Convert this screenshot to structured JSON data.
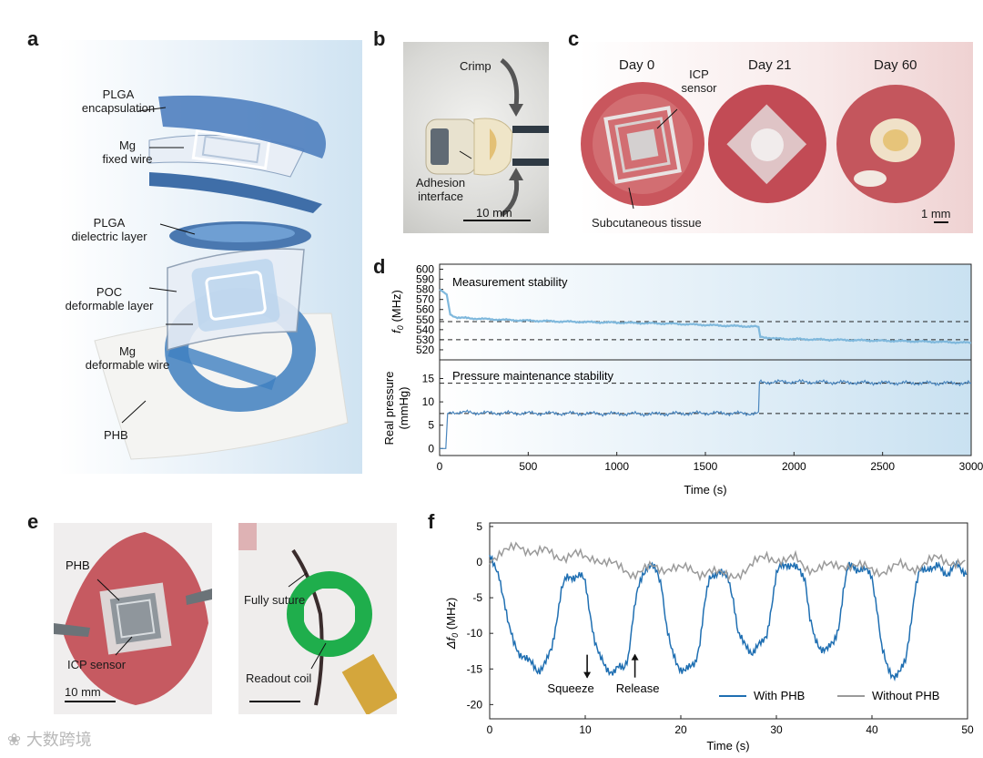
{
  "panels": {
    "a": {
      "letter": "a",
      "labels": {
        "plga_enc": "PLGA\nencapsulation",
        "mg_fixed": "Mg\nfixed wire",
        "plga_diel": "PLGA\ndielectric layer",
        "poc": "POC\ndeformable layer",
        "mg_def": "Mg\ndeformable wire",
        "phb": "PHB"
      }
    },
    "b": {
      "letter": "b",
      "labels": {
        "crimp": "Crimp",
        "adhesion": "Adhesion\ninterface",
        "scale": "10 mm"
      }
    },
    "c": {
      "letter": "c",
      "labels": {
        "day0": "Day 0",
        "day21": "Day 21",
        "day60": "Day 60",
        "icp": "ICP\nsensor",
        "subq": "Subcutaneous tissue",
        "scale": "1 mm"
      }
    },
    "d": {
      "letter": "d"
    },
    "e": {
      "letter": "e",
      "labels": {
        "phb": "PHB",
        "icp": "ICP sensor",
        "scale": "10 mm",
        "suture": "Fully suture",
        "coil": "Readout coil"
      }
    },
    "f": {
      "letter": "f"
    }
  },
  "colors": {
    "accent_blue": "#1f6fb2",
    "light_blue": "#7fb8dc",
    "gray_series": "#9a9a9a",
    "tissue_red": "#c0474f"
  },
  "chart_data": [
    {
      "id": "d-top",
      "type": "line",
      "title": "Measurement stability",
      "ylabel": "f0 (MHz)",
      "ylabel_sub": "0",
      "ylabel_main": "f",
      "ylabel_unit": " (MHz)",
      "xlim": [
        0,
        3000
      ],
      "ylim": [
        510,
        605
      ],
      "yticks": [
        520,
        530,
        540,
        550,
        560,
        570,
        580,
        590,
        600
      ],
      "dashed_lines": [
        548,
        530
      ],
      "series": [
        {
          "name": "f0",
          "x": [
            0,
            40,
            60,
            100,
            200,
            400,
            700,
            1000,
            1300,
            1600,
            1790,
            1800,
            1810,
            1900,
            2200,
            2500,
            2800,
            3000
          ],
          "y": [
            580,
            575,
            555,
            552,
            551,
            549.5,
            548,
            547,
            546,
            544,
            543,
            542,
            533,
            531,
            530,
            529,
            528,
            527
          ]
        }
      ]
    },
    {
      "id": "d-bottom",
      "type": "line",
      "title": "Pressure maintenance stability",
      "ylabel": "Real pressure\n(mmHg)",
      "xlabel": "Time (s)",
      "xlim": [
        0,
        3000
      ],
      "ylim": [
        -1.5,
        19
      ],
      "yticks": [
        0,
        5,
        10,
        15
      ],
      "xticks": [
        0,
        500,
        1000,
        1500,
        2000,
        2500,
        3000
      ],
      "dashed_lines": [
        14,
        7.5
      ],
      "series": [
        {
          "name": "Real pressure",
          "x": [
            0,
            35,
            45,
            60,
            300,
            800,
            1200,
            1500,
            1795,
            1800,
            1805,
            2000,
            2400,
            2800,
            3000
          ],
          "y": [
            0,
            0,
            7.5,
            7.8,
            7.6,
            7.5,
            7.4,
            7.6,
            7.5,
            7.5,
            14.2,
            14.3,
            14.1,
            14.0,
            14.0
          ]
        }
      ]
    },
    {
      "id": "f",
      "type": "line",
      "xlabel": "Time (s)",
      "ylabel": "Δf0 (MHz)",
      "ylabel_pre": "Δf",
      "ylabel_sub": "0",
      "ylabel_unit": " (MHz)",
      "xlim": [
        0,
        50
      ],
      "ylim": [
        -22,
        5.5
      ],
      "yticks": [
        5,
        0,
        -5,
        -10,
        -15,
        -20
      ],
      "xticks": [
        0,
        10,
        20,
        30,
        40,
        50
      ],
      "legend": {
        "position": "bottom-right",
        "entries": [
          "With PHB",
          "Without PHB"
        ]
      },
      "annotations": [
        {
          "text": "Squeeze",
          "x": 10.2,
          "y": -13,
          "direction": "down"
        },
        {
          "text": "Release",
          "x": 15.2,
          "y": -13,
          "direction": "up"
        }
      ],
      "series": [
        {
          "name": "With PHB",
          "x": [
            0,
            0.5,
            1,
            1.5,
            2,
            2.5,
            3,
            3.5,
            4,
            4.5,
            5,
            5.5,
            6,
            6.5,
            7,
            7.5,
            8,
            8.5,
            9,
            9.5,
            10,
            10.5,
            11,
            11.5,
            12,
            12.5,
            13,
            13.5,
            14,
            14.5,
            15,
            15.5,
            16,
            16.5,
            17,
            17.5,
            18,
            18.5,
            19,
            19.5,
            20,
            20.5,
            21,
            21.5,
            22,
            22.5,
            23,
            23.5,
            24,
            24.5,
            25,
            25.5,
            26,
            26.5,
            27,
            27.5,
            28,
            28.5,
            29,
            29.5,
            30,
            30.5,
            31,
            31.5,
            32,
            32.5,
            33,
            33.5,
            34,
            34.5,
            35,
            35.5,
            36,
            36.5,
            37,
            37.5,
            38,
            38.5,
            39,
            39.5,
            40,
            40.5,
            41,
            41.5,
            42,
            42.5,
            43,
            43.5,
            44,
            44.5,
            45,
            45.5,
            46,
            46.5,
            47,
            47.5,
            48,
            48.5,
            49,
            49.5,
            50
          ],
          "y": [
            1,
            -1,
            -2,
            -5,
            -9,
            -11.5,
            -12.5,
            -13,
            -14,
            -14.5,
            -15,
            -14.8,
            -14,
            -12,
            -8,
            -4,
            -2.5,
            -2,
            -1.8,
            -2,
            -3,
            -7,
            -11,
            -13.5,
            -14.5,
            -15,
            -15.5,
            -15,
            -14.8,
            -13,
            -8,
            -4,
            -1.5,
            -0.5,
            -0.8,
            -1.5,
            -3,
            -9,
            -12.5,
            -14,
            -14.8,
            -15.2,
            -15,
            -14,
            -11,
            -6,
            -2.5,
            -1.5,
            -1.2,
            -2,
            -2.5,
            -5,
            -10,
            -11.5,
            -12,
            -12.5,
            -12,
            -11.5,
            -10,
            -6,
            -2,
            -0.5,
            0,
            -0.5,
            -1,
            -1.2,
            -2,
            -8,
            -11,
            -11.8,
            -12,
            -12.2,
            -11.5,
            -9,
            -4,
            -1,
            -0.5,
            -0.8,
            -1,
            -1.5,
            -2,
            -6,
            -12,
            -14.5,
            -15.5,
            -15.8,
            -15.5,
            -14,
            -9,
            -4,
            -1.5,
            -1,
            -0.5,
            -1,
            -0.8,
            -1.2,
            -1.5,
            -1,
            -0.5,
            -1,
            -1.5
          ]
        },
        {
          "name": "Without PHB",
          "x": [
            0,
            1,
            2,
            3,
            4,
            5,
            6,
            7,
            8,
            9,
            10,
            11,
            12,
            13,
            14,
            15,
            16,
            17,
            18,
            19,
            20,
            21,
            22,
            23,
            24,
            25,
            26,
            27,
            28,
            29,
            30,
            31,
            32,
            33,
            34,
            35,
            36,
            37,
            38,
            39,
            40,
            41,
            42,
            43,
            44,
            45,
            46,
            47,
            48,
            49,
            50
          ],
          "y": [
            0.5,
            1,
            1.5,
            2.5,
            1.8,
            1.2,
            1.5,
            1,
            0.8,
            1,
            0.5,
            0.8,
            0,
            -0.5,
            -1,
            -1.5,
            -1.2,
            -0.8,
            -1,
            -0.5,
            -1,
            -1.2,
            -1.5,
            -1,
            -1.8,
            -2,
            -1.5,
            -1,
            0,
            1,
            0.5,
            0,
            0.5,
            -0.5,
            -1,
            -0.8,
            -0.5,
            -0.2,
            -0.5,
            -0.8,
            -1,
            -1.2,
            -1,
            -0.5,
            -0.8,
            -0.5,
            0,
            0.5,
            0.2,
            0,
            -0.5
          ]
        }
      ]
    }
  ],
  "watermark": "大数跨境"
}
